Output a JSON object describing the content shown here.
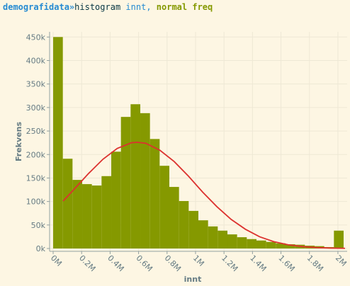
{
  "header": {
    "dataset": "demografidata»",
    "command": "histogram",
    "column": "innt,",
    "options": "normal freq"
  },
  "chart_data": {
    "type": "histogram",
    "xlabel": "innt",
    "ylabel": "Frekvens",
    "color": "#859900",
    "bins": [
      0,
      68000,
      136000,
      204000,
      272000,
      340000,
      408000,
      476000,
      544000,
      612000,
      680000,
      748000,
      816000,
      884000,
      952000,
      1020000,
      1088000,
      1156000,
      1224000,
      1292000,
      1360000,
      1428000,
      1496000,
      1564000,
      1632000,
      1700000,
      1768000,
      1836000,
      1904000,
      1972000,
      2040000
    ],
    "values": [
      450000,
      191000,
      146000,
      137000,
      134000,
      154000,
      206000,
      280000,
      307000,
      288000,
      233000,
      176000,
      131000,
      101000,
      80000,
      60000,
      47000,
      38000,
      30000,
      24000,
      20000,
      17000,
      14000,
      11000,
      9000,
      8000,
      6000,
      5000,
      3000,
      38000
    ],
    "curve": {
      "color": "#dc322f",
      "x": [
        70000,
        150000,
        250000,
        350000,
        450000,
        550000,
        590000,
        650000,
        750000,
        850000,
        950000,
        1050000,
        1150000,
        1250000,
        1350000,
        1450000,
        1550000,
        1650000,
        1750000,
        1850000,
        1950000,
        2050000
      ],
      "values": [
        101000,
        127000,
        160000,
        190000,
        213000,
        225000,
        226000,
        224000,
        209000,
        185000,
        154000,
        120000,
        89000,
        62000,
        41000,
        25000,
        14600,
        8000,
        4100,
        2000,
        900,
        400
      ]
    },
    "xlim": [
      -25000,
      2065000
    ],
    "ylim": [
      -6000,
      461000
    ],
    "grid": true,
    "xticks": [
      {
        "value": 0,
        "label": "0M"
      },
      {
        "value": 200000,
        "label": "0.2M"
      },
      {
        "value": 400000,
        "label": "0.4M"
      },
      {
        "value": 600000,
        "label": "0.6M"
      },
      {
        "value": 800000,
        "label": "0.8M"
      },
      {
        "value": 1000000,
        "label": "1M"
      },
      {
        "value": 1200000,
        "label": "1.2M"
      },
      {
        "value": 1400000,
        "label": "1.4M"
      },
      {
        "value": 1600000,
        "label": "1.6M"
      },
      {
        "value": 1800000,
        "label": "1.8M"
      },
      {
        "value": 2000000,
        "label": "2M"
      }
    ],
    "yticks": [
      {
        "value": 0,
        "label": "0k"
      },
      {
        "value": 50000,
        "label": "50k"
      },
      {
        "value": 100000,
        "label": "100k"
      },
      {
        "value": 150000,
        "label": "150k"
      },
      {
        "value": 200000,
        "label": "200k"
      },
      {
        "value": 250000,
        "label": "250k"
      },
      {
        "value": 300000,
        "label": "300k"
      },
      {
        "value": 350000,
        "label": "350k"
      },
      {
        "value": 400000,
        "label": "400k"
      },
      {
        "value": 450000,
        "label": "450k"
      }
    ]
  }
}
